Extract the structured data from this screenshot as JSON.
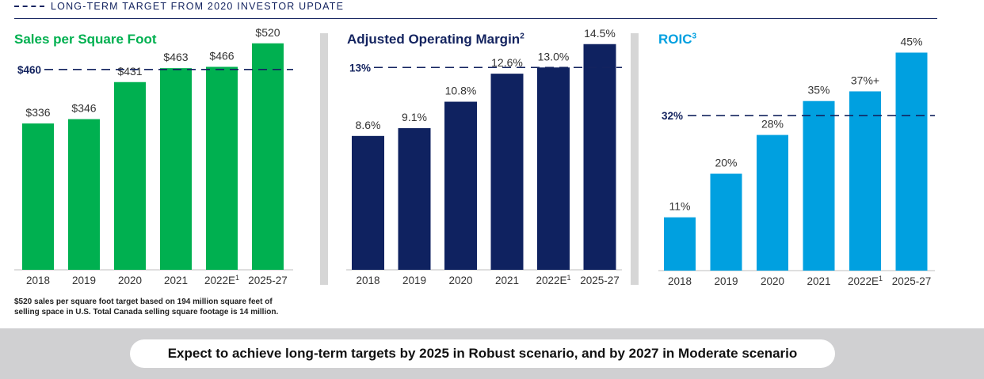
{
  "header": {
    "legend_label": "LONG-TERM TARGET FROM 2020 INVESTOR UPDATE",
    "legend_color": "#13235f"
  },
  "footnote": {
    "line1": "$520 sales per square foot target based on 194 million square feet of",
    "line2": "selling space in U.S. Total Canada selling square footage is 14 million."
  },
  "banner": {
    "text": "Expect to achieve long-term targets by 2025 in Robust scenario, and by 2027 in Moderate scenario"
  },
  "chart_data": [
    {
      "type": "bar",
      "title": "Sales per Square Foot",
      "title_sup": "",
      "color": "#00b050",
      "title_color": "#00b050",
      "categories": [
        "2018",
        "2019",
        "2020",
        "2021",
        "2022E",
        "2025-27"
      ],
      "category_sups": [
        "",
        "",
        "",
        "",
        "1",
        ""
      ],
      "values": [
        336,
        346,
        431,
        463,
        466,
        520
      ],
      "labels": [
        "$336",
        "$346",
        "$431",
        "$463",
        "$466",
        "$520"
      ],
      "target": {
        "value": 460,
        "label": "$460"
      },
      "ylim": [
        0,
        545
      ]
    },
    {
      "type": "bar",
      "title": "Adjusted Operating Margin",
      "title_sup": "2",
      "color": "#0f2260",
      "title_color": "#13235f",
      "categories": [
        "2018",
        "2019",
        "2020",
        "2021",
        "2022E",
        "2025-27"
      ],
      "category_sups": [
        "",
        "",
        "",
        "",
        "1",
        ""
      ],
      "values": [
        8.6,
        9.1,
        10.8,
        12.6,
        13.0,
        14.5
      ],
      "labels": [
        "8.6%",
        "9.1%",
        "10.8%",
        "12.6%",
        "13.0%",
        "14.5%"
      ],
      "target": {
        "value": 13,
        "label": "13%"
      },
      "ylim": [
        0,
        15.25
      ]
    },
    {
      "type": "bar",
      "title": "ROIC",
      "title_sup": "3",
      "color": "#00a0e0",
      "title_color": "#00a0e0",
      "categories": [
        "2018",
        "2019",
        "2020",
        "2021",
        "2022E",
        "2025-27"
      ],
      "category_sups": [
        "",
        "",
        "",
        "",
        "1",
        ""
      ],
      "values": [
        11,
        20,
        28,
        35,
        37,
        45
      ],
      "labels": [
        "11%",
        "20%",
        "28%",
        "35%",
        "37%+",
        "45%"
      ],
      "target": {
        "value": 32,
        "label": "32%"
      },
      "ylim": [
        0,
        49
      ]
    }
  ]
}
